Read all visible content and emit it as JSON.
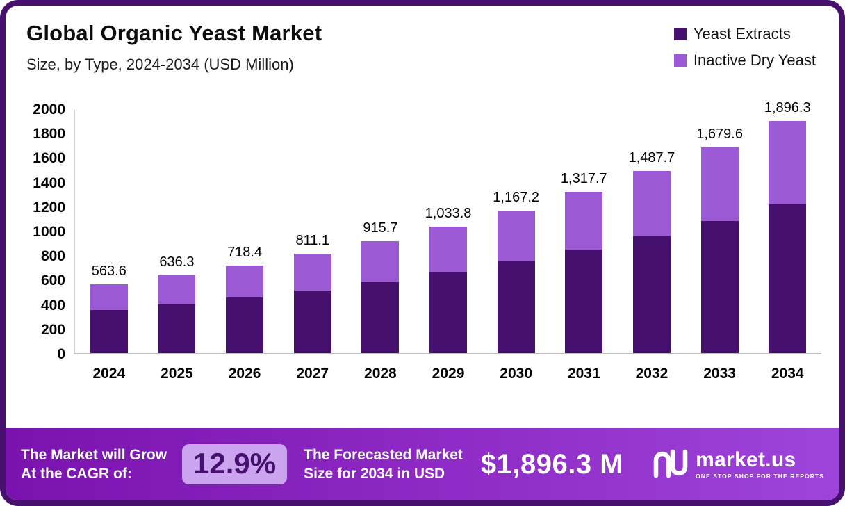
{
  "header": {
    "title": "Global Organic Yeast Market",
    "subtitle": "Size, by Type, 2024-2034 (USD Million)"
  },
  "legend": [
    {
      "label": "Yeast Extracts",
      "color": "#46106E"
    },
    {
      "label": "Inactive Dry Yeast",
      "color": "#9B59D6"
    }
  ],
  "chart_data": {
    "type": "bar",
    "stacked": true,
    "title": "Global Organic Yeast Market Size, by Type, 2024-2034 (USD Million)",
    "categories": [
      "2024",
      "2025",
      "2026",
      "2027",
      "2028",
      "2029",
      "2030",
      "2031",
      "2032",
      "2033",
      "2034"
    ],
    "series": [
      {
        "name": "Yeast Extracts",
        "color": "#46106E",
        "values": [
          352,
          398,
          452,
          512,
          582,
          660,
          748,
          846,
          952,
          1080,
          1218
        ]
      },
      {
        "name": "Inactive Dry Yeast",
        "color": "#9B59D6",
        "values": [
          211.6,
          238.3,
          266.4,
          299.1,
          333.7,
          373.8,
          419.2,
          471.7,
          535.7,
          599.6,
          678.3
        ]
      }
    ],
    "totals": [
      563.6,
      636.3,
      718.4,
      811.1,
      915.7,
      1033.8,
      1167.2,
      1317.7,
      1487.7,
      1679.6,
      1896.3
    ],
    "total_labels": [
      "563.6",
      "636.3",
      "718.4",
      "811.1",
      "915.7",
      "1,033.8",
      "1,167.2",
      "1,317.7",
      "1,487.7",
      "1,679.6",
      "1,896.3"
    ],
    "xlabel": "",
    "ylabel": "",
    "ylim": [
      0,
      2000
    ],
    "yticks": [
      0,
      200,
      400,
      600,
      800,
      1000,
      1200,
      1400,
      1600,
      1800,
      2000
    ],
    "grid": false,
    "legend_position": "top-right"
  },
  "footer": {
    "cagr_line1": "The Market will Grow",
    "cagr_line2": "At the CAGR of:",
    "cagr_value": "12.9%",
    "forecast_line1": "The Forecasted Market",
    "forecast_line2": "Size for 2034 in USD",
    "forecast_value": "$1,896.3 M",
    "brand": "market.us",
    "brand_tagline": "ONE STOP SHOP FOR THE REPORTS"
  },
  "colors": {
    "border": "#46106E",
    "yeast_extracts": "#46106E",
    "inactive_dry_yeast": "#9B59D6",
    "footer_gradient_start": "#7A12AE",
    "footer_gradient_end": "#9D45DB",
    "cagr_badge_bg": "#CBA4EF",
    "cagr_badge_text": "#46106E"
  }
}
